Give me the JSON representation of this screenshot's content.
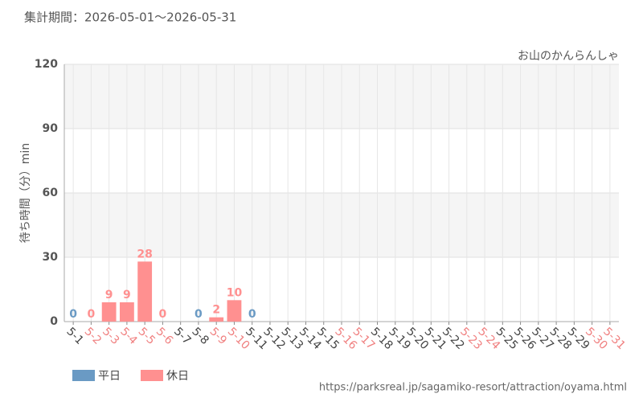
{
  "header": "集計期間：2026-05-01～2026-05-31",
  "footer": "https://parksreal.jp/sagamiko-resort/attraction/oyama.html",
  "chart_data": {
    "type": "bar",
    "title": "お山のかんらんしゃ",
    "y_label": "待ち時間（分）min",
    "categories": [
      "5-1",
      "5-2",
      "5-3",
      "5-4",
      "5-5",
      "5-6",
      "5-7",
      "5-8",
      "5-9",
      "5-10",
      "5-11",
      "5-12",
      "5-13",
      "5-14",
      "5-15",
      "5-16",
      "5-17",
      "5-18",
      "5-19",
      "5-20",
      "5-21",
      "5-22",
      "5-23",
      "5-24",
      "5-25",
      "5-26",
      "5-27",
      "5-28",
      "5-29",
      "5-30",
      "5-31"
    ],
    "category_colors": [
      "#444",
      "#f08080",
      "#f08080",
      "#f08080",
      "#f08080",
      "#f08080",
      "#444",
      "#444",
      "#f08080",
      "#f08080",
      "#444",
      "#444",
      "#444",
      "#444",
      "#444",
      "#f08080",
      "#f08080",
      "#444",
      "#444",
      "#444",
      "#444",
      "#444",
      "#f08080",
      "#f08080",
      "#444",
      "#444",
      "#444",
      "#444",
      "#444",
      "#f08080",
      "#f08080"
    ],
    "series": [
      {
        "name": "平日",
        "color": "#6a9ac4",
        "values": [
          0,
          null,
          null,
          null,
          null,
          null,
          null,
          0,
          null,
          null,
          0,
          null,
          null,
          null,
          null,
          null,
          null,
          null,
          null,
          null,
          null,
          null,
          null,
          null,
          null,
          null,
          null,
          null,
          null,
          null,
          null
        ]
      },
      {
        "name": "休日",
        "color": "#ff9090",
        "values": [
          null,
          0,
          9,
          9,
          28,
          0,
          null,
          null,
          2,
          10,
          null,
          null,
          null,
          null,
          null,
          null,
          null,
          null,
          null,
          null,
          null,
          null,
          null,
          null,
          null,
          null,
          null,
          null,
          null,
          null,
          null
        ]
      }
    ],
    "ylim": [
      0,
      120
    ],
    "yticks": [
      0,
      30,
      60,
      90,
      120
    ],
    "grid": true
  }
}
